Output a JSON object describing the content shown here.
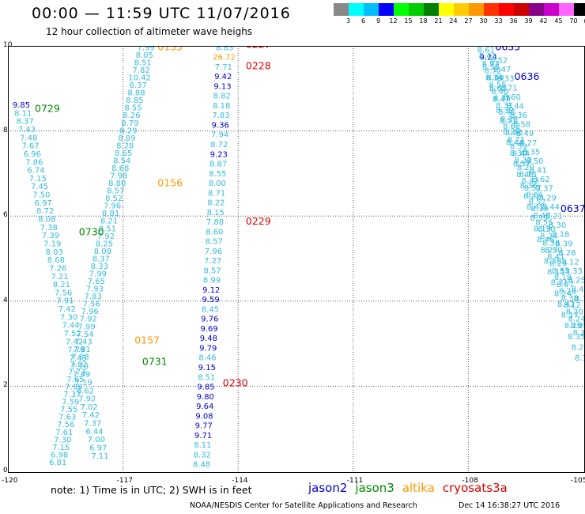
{
  "header": {
    "title": "00:00 — 11:59 UTC 11/07/2016",
    "subtitle": "12 hour collection of altimeter wave heighs"
  },
  "colorbar": {
    "colors": [
      "#888888",
      "#00ffff",
      "#00bfff",
      "#0000ff",
      "#00ff00",
      "#00cc00",
      "#008000",
      "#ffff00",
      "#ffcc00",
      "#ff9900",
      "#ff3300",
      "#ff0000",
      "#cc0000",
      "#880088",
      "#cc00cc",
      "#ff66ff",
      "#000000"
    ],
    "ticks": [
      "3",
      "6",
      "9",
      "12",
      "15",
      "18",
      "21",
      "24",
      "27",
      "30",
      "33",
      "36",
      "39",
      "42",
      "45",
      "70",
      "(ft)"
    ]
  },
  "colors": {
    "jason2": "#0000cc",
    "jason3": "#008800",
    "altika": "#ff9900",
    "cryosat": "#dd0000",
    "s3a": "#cc0000",
    "light": "#33bbdd",
    "grid": "#555555"
  },
  "chart_data": {
    "type": "scatter",
    "xlim": [
      -120,
      -105
    ],
    "ylim": [
      0,
      10
    ],
    "xticks": [
      "-120",
      "-117",
      "-114",
      "-111",
      "-108",
      "-105"
    ],
    "yticks": [
      "0",
      "2",
      "4",
      "6",
      "8",
      "10"
    ],
    "grid": true,
    "track_labels": [
      {
        "text": "0155",
        "satellite": "altika",
        "lon": -116.1,
        "lat": 9.9
      },
      {
        "text": "0156",
        "satellite": "altika",
        "lon": -116.1,
        "lat": 6.7
      },
      {
        "text": "0157",
        "satellite": "altika",
        "lon": -116.7,
        "lat": 3.0
      },
      {
        "text": "0729",
        "satellite": "jason3",
        "lon": -119.3,
        "lat": 8.45
      },
      {
        "text": "0730",
        "satellite": "jason3",
        "lon": -118.15,
        "lat": 5.55
      },
      {
        "text": "0731",
        "satellite": "jason3",
        "lon": -116.5,
        "lat": 2.5
      },
      {
        "text": "0227",
        "satellite": "cryosat",
        "lon": -113.8,
        "lat": 9.95
      },
      {
        "text": "0228",
        "satellite": "cryosat",
        "lon": -113.8,
        "lat": 9.45
      },
      {
        "text": "0229",
        "satellite": "cryosat",
        "lon": -113.8,
        "lat": 5.8
      },
      {
        "text": "0230",
        "satellite": "cryosat",
        "lon": -114.4,
        "lat": 2.0
      },
      {
        "text": "0635",
        "satellite": "jason2",
        "lon": -107.3,
        "lat": 9.9
      },
      {
        "text": "0636",
        "satellite": "jason2",
        "lon": -106.8,
        "lat": 9.2
      },
      {
        "text": "0637",
        "satellite": "jason2",
        "lon": -105.6,
        "lat": 6.1
      }
    ],
    "tracks": [
      {
        "satellite": "jason3",
        "lon_start": -119.65,
        "lat_start": 8.55,
        "lon_end": -117.6,
        "lat_end": 0.3,
        "values": [
          "9.85",
          "8.11",
          "8.37",
          "7.43",
          "7.48",
          "7.67",
          "6.96",
          "7.86",
          "6.74",
          "7.15",
          "7.45",
          "7.50",
          "6.97",
          "8.72",
          "8.08",
          "7.38",
          "7.39",
          "7.19",
          "8.03",
          "8.68",
          "7.26",
          "7.21",
          "8.21",
          "7.56",
          "7.91",
          "7.42",
          "7.30",
          "7.44",
          "7.52",
          "7.42",
          "7.79",
          "7.43",
          "7.70",
          "7.49",
          "7.19",
          "6.62",
          "7.92",
          "7.02",
          "7.42",
          "7.37",
          "6.44",
          "7.00",
          "6.97",
          "7.11"
        ]
      },
      {
        "satellite": "altika",
        "lon_start": -116.4,
        "lat_start": 9.9,
        "lon_end": -118.7,
        "lat_end": 0.15,
        "values": [
          "7.99",
          "8.05",
          "8.51",
          "7.82",
          "10.42",
          "8.37",
          "8.88",
          "8.85",
          "8.55",
          "8.26",
          "8.79",
          "8.29",
          "8.89",
          "8.28",
          "8.65",
          "8.54",
          "8.68",
          "7.98",
          "8.80",
          "8.57",
          "8.52",
          "7.96",
          "8.81",
          "8.21",
          "8.51",
          "7.92",
          "8.25",
          "8.08",
          "8.37",
          "8.33",
          "7.99",
          "7.65",
          "7.93",
          "7.83",
          "7.56",
          "7.96",
          "7.92",
          "7.99",
          "7.54",
          "7.43",
          "7.81",
          "7.68",
          "7.82",
          "7.73",
          "7.65",
          "7.99",
          "7.37",
          "7.59",
          "7.55",
          "7.63",
          "7.56",
          "7.61",
          "7.30",
          "7.15",
          "6.98",
          "6.81"
        ]
      },
      {
        "satellite": "cryosat",
        "lon_start": -114.35,
        "lat_start": 9.9,
        "lon_end": -114.95,
        "lat_end": 0.1,
        "values": [
          "8.83",
          "26.72",
          "7.71",
          "9.42",
          "9.13",
          "8.82",
          "8.18",
          "7.83",
          "9.36",
          "7.94",
          "8.72",
          "9.23",
          "8.87",
          "8.55",
          "8.00",
          "8.71",
          "8.22",
          "8.15",
          "7.88",
          "8.60",
          "8.57",
          "7.96",
          "7.27",
          "8.57",
          "8.99",
          "9.12",
          "9.59",
          "8.45",
          "9.76",
          "9.69",
          "9.48",
          "9.79",
          "8.46",
          "9.15",
          "8.51",
          "9.85",
          "9.80",
          "9.64",
          "9.08",
          "9.77",
          "9.71",
          "8.11",
          "8.32",
          "8.48"
        ]
      },
      {
        "satellite": "jason2",
        "lon_start": -107.6,
        "lat_start": 10.0,
        "lon_end": -105.05,
        "lat_end": 3.2,
        "values": [
          "8.19",
          "8.61",
          "9.24",
          "8.93",
          "8.72",
          "8.69",
          "8.55",
          "8.40",
          "8.25",
          "8.31",
          "8.46",
          "8.38",
          "8.62",
          "8.80",
          "8.71",
          "8.59",
          "8.44",
          "8.33",
          "8.20",
          "8.15",
          "8.42",
          "8.57",
          "8.61",
          "8.52",
          "8.39",
          "8.47",
          "8.55",
          "8.30",
          "8.24",
          "8.36",
          "8.50",
          "8.41",
          "8.29",
          "8.33",
          "8.18",
          "8.07",
          "8.26",
          "8.38",
          "8.12",
          "8.20",
          "8.24",
          "8.09",
          "8.31"
        ]
      },
      {
        "satellite": "jason2",
        "lon_start": -107.2,
        "lat_start": 9.6,
        "lon_end": -105.0,
        "lat_end": 4.0,
        "values": [
          "8.52",
          "8.47",
          "8.33",
          "8.71",
          "8.60",
          "8.44",
          "8.36",
          "8.58",
          "8.49",
          "8.27",
          "8.35",
          "8.50",
          "8.41",
          "8.62",
          "8.37",
          "8.29",
          "8.44",
          "8.21",
          "8.30",
          "8.18",
          "8.39",
          "8.28",
          "8.12",
          "8.33",
          "8.25",
          "8.40",
          "8.19"
        ]
      },
      {
        "satellite": "jason2",
        "lon_start": -107.5,
        "lat_start": 9.7,
        "lon_end": -105.0,
        "lat_end": 2.6,
        "values": [
          "8.41",
          "8.55",
          "8.34",
          "8.62",
          "8.47",
          "8.39",
          "8.51",
          "8.28",
          "8.44",
          "8.30",
          "8.57",
          "8.48",
          "8.36",
          "8.22",
          "8.41",
          "8.33",
          "8.19",
          "8.46",
          "8.27",
          "8.38",
          "8.15",
          "8.31",
          "8.24",
          "8.42",
          "8.17",
          "8.29",
          "8.35",
          "8.21",
          "8.11"
        ]
      }
    ]
  },
  "footer": {
    "note": "note: 1) Time is in UTC; 2) SWH is in feet",
    "legend": [
      {
        "name": "jason2",
        "color": "#0000cc"
      },
      {
        "name": "jason3",
        "color": "#008800"
      },
      {
        "name": "altika",
        "color": "#ff9900"
      },
      {
        "name": "cryosat",
        "color": "#dd0000"
      },
      {
        "name": "s3a",
        "color": "#cc0000"
      }
    ],
    "credit": "NOAA/NESDIS Center for Satellite Applications and Research",
    "timestamp": "Dec 14 16:38:27 UTC 2016"
  }
}
